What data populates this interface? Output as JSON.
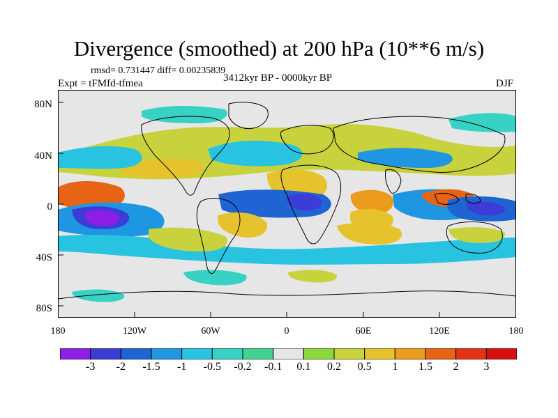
{
  "header": {
    "title": "Divergence (smoothed) at 200 hPa (10**6 m/s)",
    "stats": "rmsd= 0.731447 diff= 0.00235839",
    "experiment": "Expt = tFMfd-tfmea",
    "period": "3412kyr BP - 0000kyr BP",
    "season": "DJF"
  },
  "axes": {
    "y_labels": [
      "80N",
      "40N",
      "0",
      "40S",
      "80S"
    ],
    "x_labels": [
      "180",
      "120W",
      "60W",
      "0",
      "60E",
      "120E",
      "180"
    ]
  },
  "colorbar": {
    "labels": [
      "-3",
      "-2",
      "-1.5",
      "-1",
      "-0.5",
      "-0.2",
      "-0.1",
      "0.1",
      "0.2",
      "0.5",
      "1",
      "1.5",
      "2",
      "3"
    ],
    "colors": [
      "#8c1ee6",
      "#3c3cd7",
      "#1e64d2",
      "#1e96e1",
      "#28c3e1",
      "#37d2c3",
      "#41d291",
      "#e6e6e6",
      "#8cd73c",
      "#c8d23c",
      "#e6c32d",
      "#eb9b1e",
      "#e66414",
      "#e63214",
      "#d70f0f"
    ]
  },
  "map_colors": {
    "ocean_bg": "#e6e6e6",
    "coast": "#000000",
    "strong_neg": "#8c1ee6",
    "neg2": "#3c3cd7",
    "neg15": "#1e64d2",
    "neg1": "#1e96e1",
    "neg05": "#28c3e1",
    "neg02": "#37d2c3",
    "pos02": "#8cd73c",
    "pos05": "#c8d23c",
    "pos1": "#e6c32d",
    "pos15": "#eb9b1e",
    "pos2": "#e66414",
    "pos3": "#e63214"
  }
}
